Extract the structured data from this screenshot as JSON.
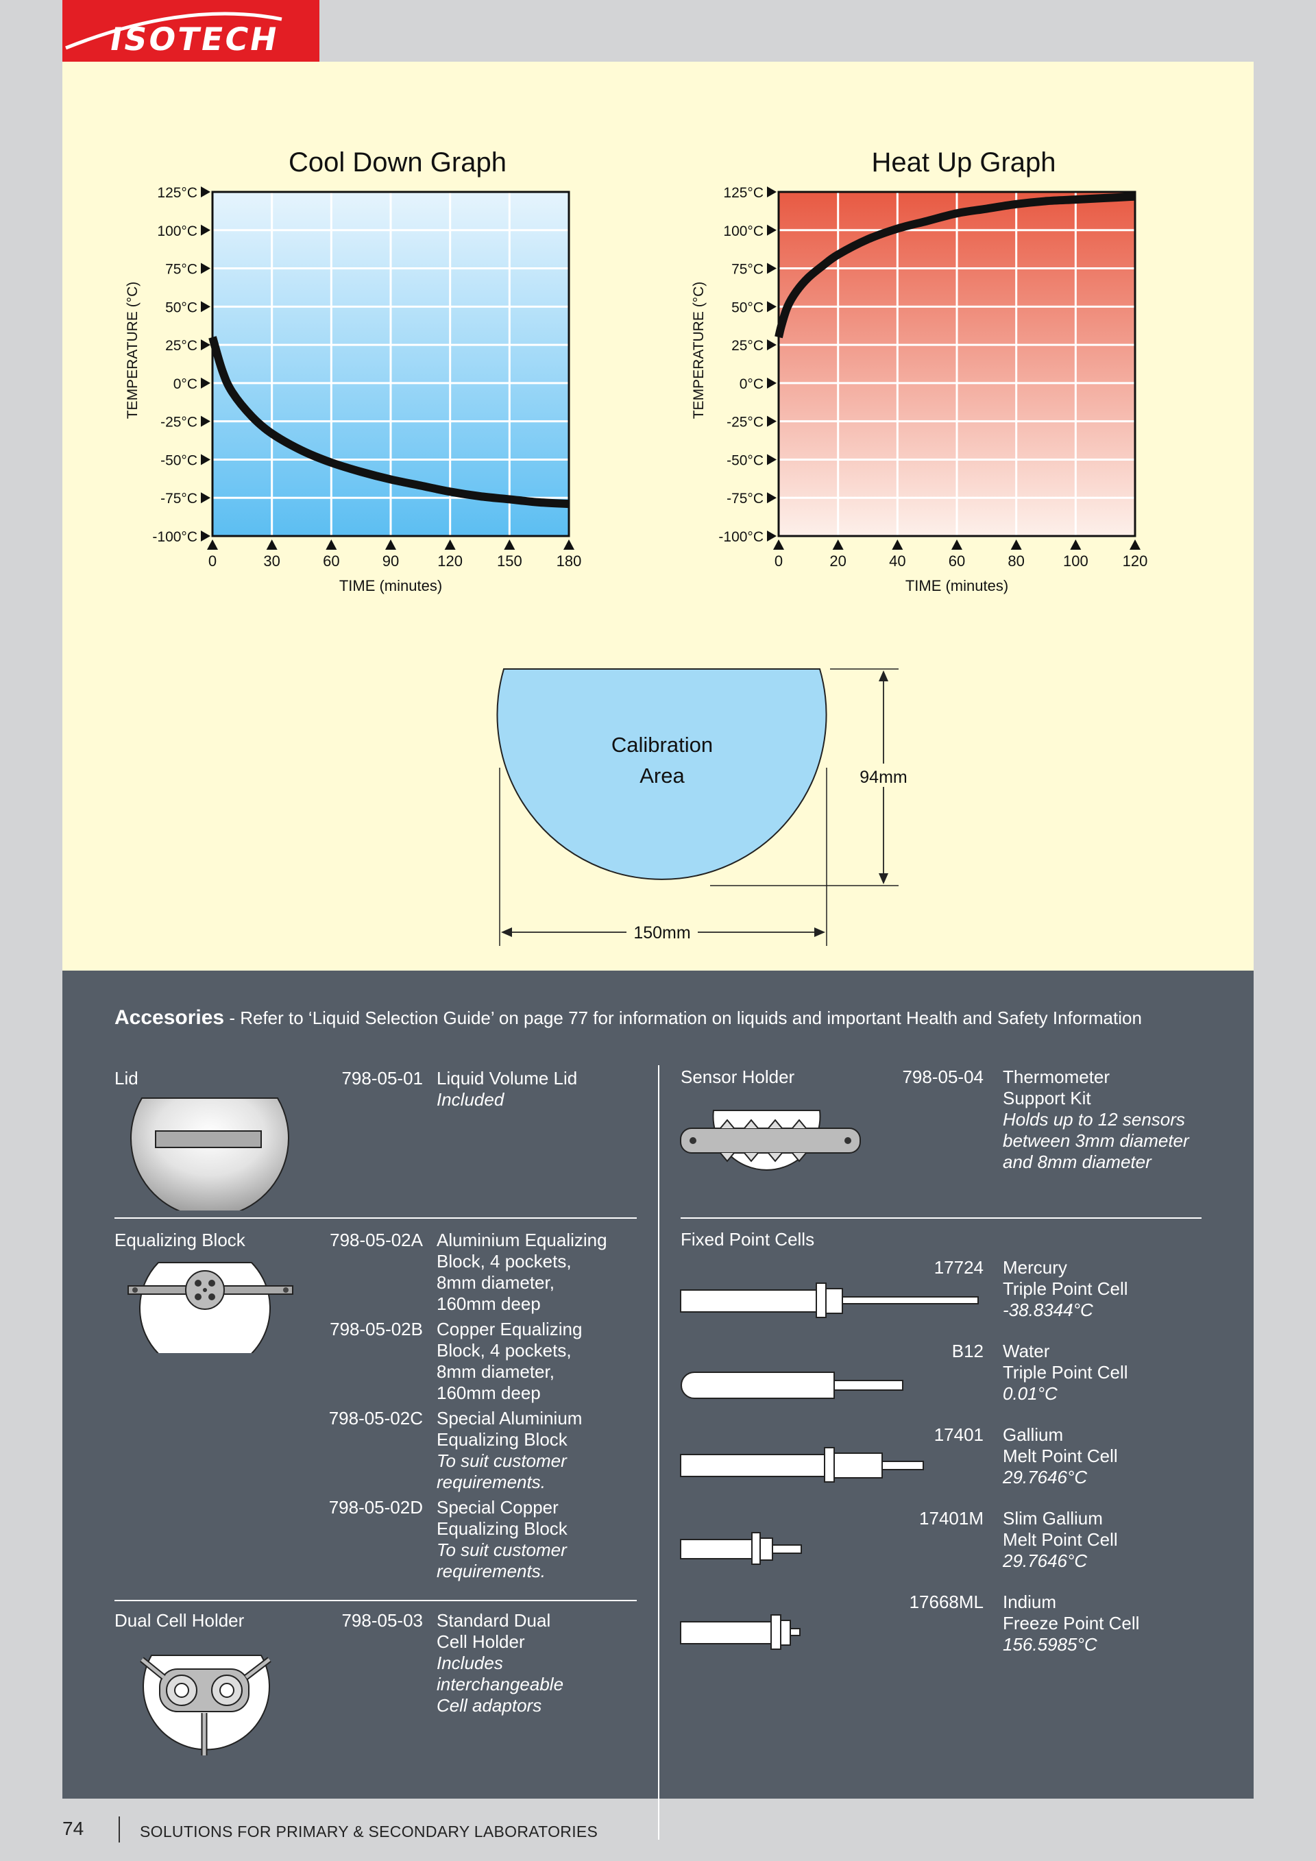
{
  "brand": {
    "logo": "ISOTECH",
    "color": "#e31e24"
  },
  "charts": {
    "cool": {
      "title": "Cool Down Graph",
      "ylabel": "TEMPERATURE (°C)",
      "xlabel": "TIME (minutes)"
    },
    "heat": {
      "title": "Heat Up Graph",
      "ylabel": "TEMPERATURE (°C)",
      "xlabel": "TIME (minutes)"
    }
  },
  "chart_data": [
    {
      "type": "line",
      "title": "Cool Down Graph",
      "xlabel": "TIME (minutes)",
      "ylabel": "TEMPERATURE (°C)",
      "xlim": [
        0,
        180
      ],
      "ylim": [
        -100,
        125
      ],
      "grid": true,
      "x_ticks": [
        "0",
        "30",
        "60",
        "90",
        "120",
        "150",
        "180"
      ],
      "y_ticks": [
        "125°C",
        "100°C",
        "75°C",
        "50°C",
        "25°C",
        "0°C",
        "-25°C",
        "-50°C",
        "-75°C",
        "-100°C"
      ],
      "series": [
        {
          "x": [
            0,
            5,
            10,
            20,
            30,
            45,
            60,
            75,
            90,
            105,
            120,
            135,
            150,
            165,
            180
          ],
          "y": [
            30,
            8,
            -6,
            -22,
            -33,
            -44,
            -52,
            -58,
            -63,
            -67,
            -71,
            -74,
            -76,
            -78,
            -79
          ]
        }
      ]
    },
    {
      "type": "line",
      "title": "Heat Up Graph",
      "xlabel": "TIME (minutes)",
      "ylabel": "TEMPERATURE (°C)",
      "xlim": [
        0,
        120
      ],
      "ylim": [
        -100,
        125
      ],
      "grid": true,
      "x_ticks": [
        "0",
        "20",
        "40",
        "60",
        "80",
        "100",
        "120"
      ],
      "y_ticks": [
        "125°C",
        "100°C",
        "75°C",
        "50°C",
        "25°C",
        "0°C",
        "-25°C",
        "-50°C",
        "-75°C",
        "-100°C"
      ],
      "series": [
        {
          "x": [
            0,
            1,
            3,
            6,
            10,
            15,
            20,
            30,
            40,
            50,
            60,
            70,
            80,
            90,
            100,
            110,
            120
          ],
          "y": [
            30,
            38,
            50,
            60,
            69,
            77,
            84,
            94,
            101,
            106,
            111,
            114,
            117,
            119,
            120,
            121,
            122
          ]
        }
      ]
    }
  ],
  "calibration": {
    "label_line1": "Calibration",
    "label_line2": "Area",
    "height": "94mm",
    "width": "150mm"
  },
  "accessories": {
    "title": "Accesories",
    "subtitle": " - Refer to ‘Liquid Selection Guide’ on page 77 for information on liquids and important Health and Safety Information",
    "lid": {
      "label": "Lid",
      "code": "798-05-01",
      "line1": "Liquid Volume Lid",
      "italic1": "Included"
    },
    "sensor": {
      "label": "Sensor Holder",
      "code": "798-05-04",
      "line1": "Thermometer",
      "line2": "Support Kit",
      "italic1": "Holds up to 12 sensors",
      "italic2": "between 3mm diameter",
      "italic3": "and 8mm diameter"
    },
    "equalizing": {
      "label": "Equalizing Block",
      "items": [
        {
          "code": "798-05-02A",
          "lines": [
            "Aluminium Equalizing",
            "Block, 4 pockets,",
            "8mm diameter,",
            "160mm deep"
          ],
          "italic": []
        },
        {
          "code": "798-05-02B",
          "lines": [
            "Copper Equalizing",
            "Block, 4 pockets,",
            "8mm diameter,",
            "160mm deep"
          ],
          "italic": []
        },
        {
          "code": "798-05-02C",
          "lines": [
            "Special Aluminium",
            "Equalizing Block"
          ],
          "italic": [
            "To suit customer",
            "requirements."
          ]
        },
        {
          "code": "798-05-02D",
          "lines": [
            "Special Copper",
            "Equalizing Block"
          ],
          "italic": [
            "To suit customer",
            "requirements."
          ]
        }
      ]
    },
    "dual": {
      "label": "Dual Cell Holder",
      "code": "798-05-03",
      "line1": "Standard Dual",
      "line2": "Cell Holder",
      "italic1": "Includes",
      "italic2": "interchangeable",
      "italic3": "Cell adaptors"
    },
    "fixed": {
      "label": "Fixed Point Cells",
      "items": [
        {
          "code": "17724",
          "line1": "Mercury",
          "line2": "Triple Point Cell",
          "italic": "-38.8344°C"
        },
        {
          "code": "B12",
          "line1": "Water",
          "line2": "Triple Point Cell",
          "italic": "0.01°C"
        },
        {
          "code": "17401",
          "line1": "Gallium",
          "line2": "Melt Point Cell",
          "italic": "29.7646°C"
        },
        {
          "code": "17401M",
          "line1": "Slim Gallium",
          "line2": "Melt Point Cell",
          "italic": "29.7646°C"
        },
        {
          "code": "17668ML",
          "line1": "Indium",
          "line2": "Freeze Point Cell",
          "italic": "156.5985°C"
        }
      ]
    }
  },
  "footer": {
    "page": "74",
    "text": "SOLUTIONS FOR PRIMARY & SECONDARY LABORATORIES"
  }
}
